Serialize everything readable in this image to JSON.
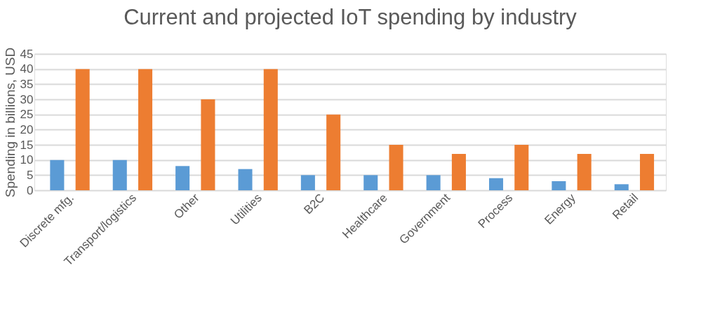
{
  "chart_data": {
    "type": "bar",
    "title": "Current and projected IoT spending by industry",
    "ylabel": "Spending in billions, USD",
    "categories": [
      "Discrete mfg.",
      "Transport/logistics",
      "Other",
      "Utilities",
      "B2C",
      "Healthcare",
      "Government",
      "Process",
      "Energy",
      "Retail"
    ],
    "series": [
      {
        "color": "#5b9bd5",
        "values": [
          10,
          10,
          8,
          7,
          5,
          5,
          5,
          4,
          3,
          2
        ]
      },
      {
        "color": "#ed7d31",
        "values": [
          40,
          40,
          30,
          40,
          25,
          15,
          12,
          15,
          12,
          12
        ]
      }
    ],
    "ylim": [
      0,
      45
    ],
    "yticks": [
      0,
      5,
      10,
      15,
      20,
      25,
      30,
      35,
      40,
      45
    ],
    "grid": "y",
    "legend": false
  }
}
